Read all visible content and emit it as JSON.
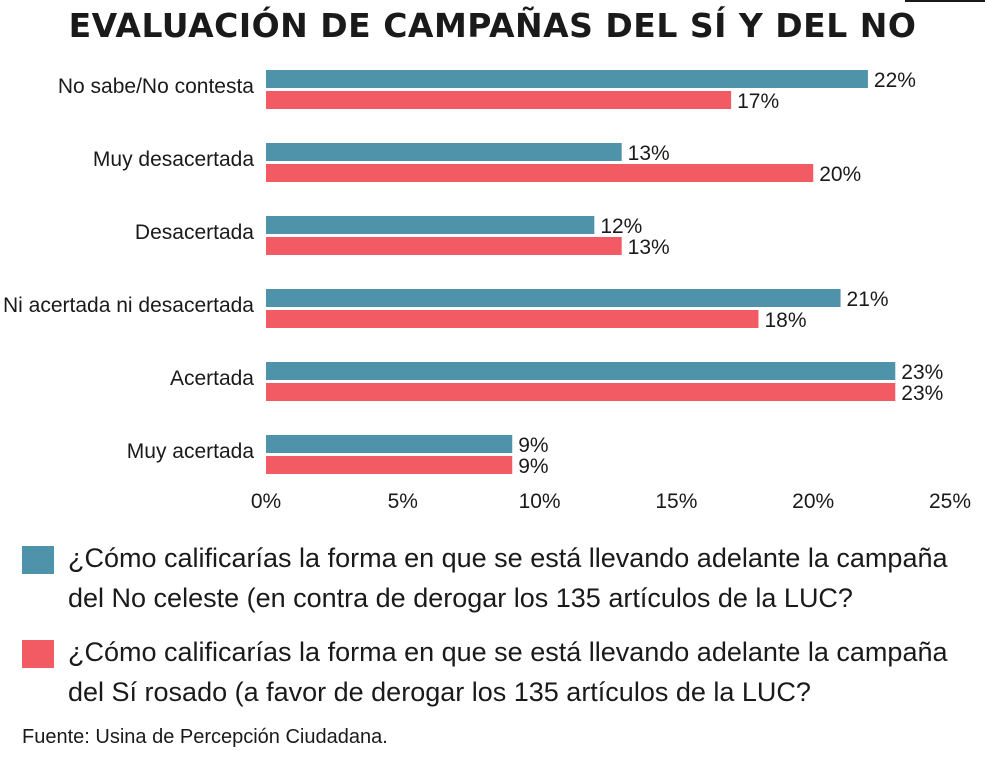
{
  "title": "EVALUACIÓN DE CAMPAÑAS DEL SÍ Y DEL NO",
  "colors": {
    "no": "#4f93aa",
    "si": "#f25a64"
  },
  "chart_data": {
    "type": "bar",
    "orientation": "horizontal",
    "categories": [
      "No sabe/No contesta",
      "Muy desacertada",
      "Desacertada",
      "Ni acertada ni desacertada",
      "Acertada",
      "Muy acertada"
    ],
    "series": [
      {
        "key": "no",
        "values": [
          22,
          13,
          12,
          21,
          23,
          9
        ],
        "labels": [
          "22%",
          "13%",
          "12%",
          "21%",
          "23%",
          "9%"
        ]
      },
      {
        "key": "si",
        "values": [
          17,
          20,
          13,
          18,
          23,
          9
        ],
        "labels": [
          "17%",
          "20%",
          "13%",
          "18%",
          "23%",
          "9%"
        ]
      }
    ],
    "xlim": [
      0,
      25
    ],
    "xticks": [
      "0%",
      "5%",
      "10%",
      "15%",
      "20%",
      "25%"
    ],
    "grid": false
  },
  "legend": {
    "no": "¿Cómo calificarías la forma en que se está llevando adelante la campaña del No celeste (en contra de derogar los 135 artículos de la LUC?",
    "si": "¿Cómo calificarías la forma en que se está llevando adelante la campaña del Sí rosado (a favor de derogar los 135 artículos de la LUC?"
  },
  "source": "Fuente: Usina de Percepción Ciudadana."
}
